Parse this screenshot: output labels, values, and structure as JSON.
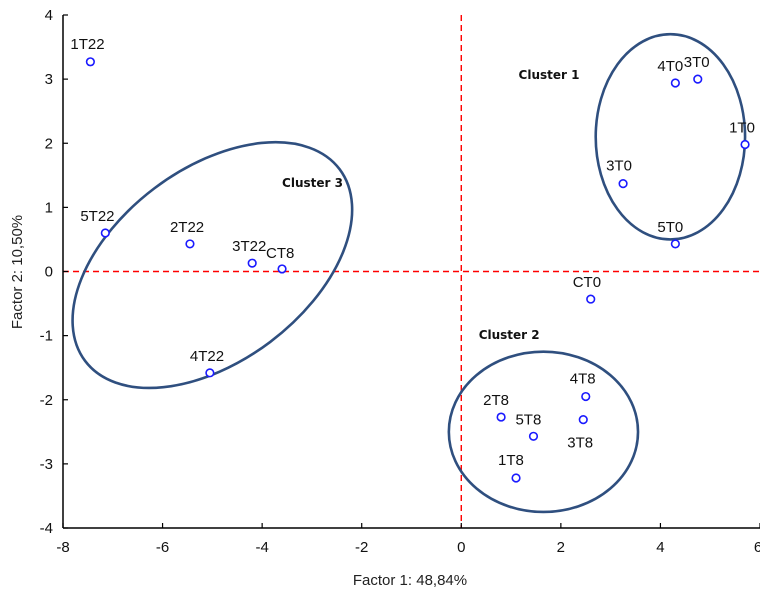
{
  "chart_data": {
    "type": "scatter",
    "xlabel": "Factor 1: 48,84%",
    "ylabel": "Factor 2: 10,50%",
    "xlim": [
      -8,
      6
    ],
    "ylim": [
      -4,
      4
    ],
    "xticks": [
      "-8",
      "-6",
      "-4",
      "-2",
      "0",
      "2",
      "4",
      "6"
    ],
    "yticks": [
      "-4",
      "-3",
      "-2",
      "-1",
      "0",
      "1",
      "2",
      "3",
      "4"
    ],
    "grid": false,
    "reference_lines": {
      "x": 0,
      "y": 0,
      "color": "#ff0000",
      "style": "dashed"
    },
    "points": [
      {
        "label": "1T22",
        "x": -7.45,
        "y": 3.27
      },
      {
        "label": "5T22",
        "x": -7.15,
        "y": 0.6
      },
      {
        "label": "2T22",
        "x": -5.45,
        "y": 0.43
      },
      {
        "label": "3T22",
        "x": -4.2,
        "y": 0.13
      },
      {
        "label": "CT8",
        "x": -3.6,
        "y": 0.04
      },
      {
        "label": "4T22",
        "x": -5.05,
        "y": -1.58
      },
      {
        "label": "4T0",
        "x": 4.3,
        "y": 2.94
      },
      {
        "label": "3T0",
        "x": 4.75,
        "y": 3.0
      },
      {
        "label": "1T0",
        "x": 5.7,
        "y": 1.98
      },
      {
        "label": "3T0",
        "x": 3.25,
        "y": 1.37
      },
      {
        "label": "5T0",
        "x": 4.3,
        "y": 0.43
      },
      {
        "label": "CT0",
        "x": 2.6,
        "y": -0.43
      },
      {
        "label": "4T8",
        "x": 2.5,
        "y": -1.95
      },
      {
        "label": "2T8",
        "x": 0.8,
        "y": -2.27
      },
      {
        "label": "3T8",
        "x": 2.45,
        "y": -2.31
      },
      {
        "label": "5T8",
        "x": 1.45,
        "y": -2.57
      },
      {
        "label": "1T8",
        "x": 1.1,
        "y": -3.22
      }
    ],
    "clusters": [
      {
        "label": "Cluster 1",
        "cx": 4.2,
        "cy": 2.1,
        "rx": 1.5,
        "ry": 1.6,
        "rotation": 0
      },
      {
        "label": "Cluster 2",
        "cx": 1.65,
        "cy": -2.5,
        "rx": 1.9,
        "ry": 1.25,
        "rotation": 0
      },
      {
        "label": "Cluster 3",
        "cx": -5.0,
        "cy": 0.1,
        "rx": 3.2,
        "ry": 1.5,
        "rotation": -37
      }
    ],
    "colors": {
      "point": "#1a1aff",
      "ellipse": "#2f4f7f",
      "refline": "#ff0000"
    }
  }
}
